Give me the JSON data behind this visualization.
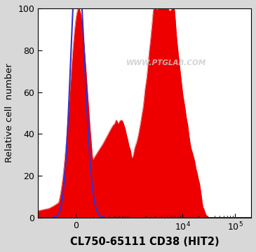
{
  "ylabel": "Relative cell  number",
  "xlabel": "CL750-65111 CD38 (HIT2)",
  "ylim": [
    0,
    100
  ],
  "background_color": "#d8d8d8",
  "plot_bg_color": "#ffffff",
  "watermark": "WWW.PTGLAB.COM",
  "blue_color": "#3333cc",
  "red_color": "#dd0000",
  "red_fill_color": "#ee0000",
  "tick_label_fontsize": 9,
  "axis_label_fontsize": 9.5,
  "xlabel_fontsize": 10.5,
  "linthresh": 300,
  "linscale": 0.45,
  "xlim_low": -500,
  "xlim_high": 200000
}
